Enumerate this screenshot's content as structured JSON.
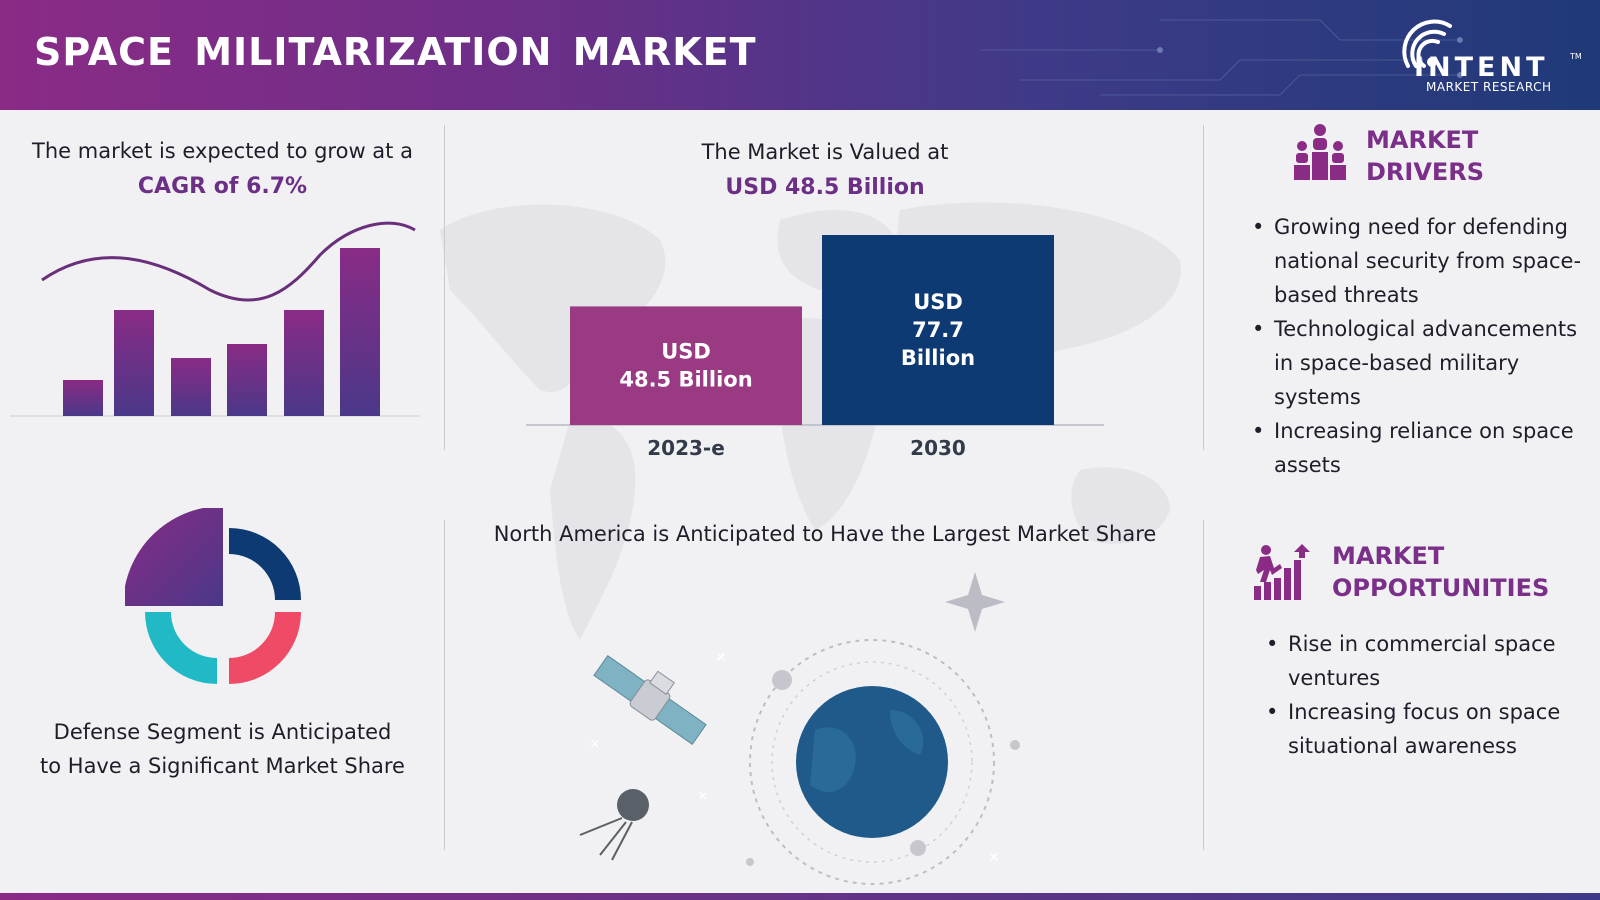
{
  "header": {
    "title": "SPACE  MILITARIZATION  MARKET",
    "logo_word": "INTENT",
    "logo_tm": "TM",
    "logo_sub": "MARKET RESEARCH"
  },
  "cagr": {
    "line1": "The market is expected to grow at a",
    "highlight": "CAGR of 6.7%"
  },
  "valuation": {
    "line1": "The Market is Valued at",
    "highlight": "USD 48.5 Billion"
  },
  "chart_data": {
    "type": "bar",
    "categories": [
      "2023-e",
      "2030"
    ],
    "values": [
      48.5,
      77.7
    ],
    "data_labels": [
      "USD\n48.5 Billion",
      "USD\n77.7\nBillion"
    ],
    "colors": [
      "#9a3a83",
      "#0d3a72"
    ],
    "title": "",
    "xlabel": "",
    "ylabel": "",
    "ylim": [
      0,
      80
    ]
  },
  "segment": {
    "text": "Defense Segment is Anticipated to Have a Significant Market Share"
  },
  "region": {
    "text": "North America is Anticipated to Have the Largest Market Share"
  },
  "drivers": {
    "title_line1": "MARKET",
    "title_line2": "DRIVERS",
    "items": [
      "Growing need for defending national security from space-based threats",
      "Technological advancements in space-based military systems",
      "Increasing reliance on space assets"
    ]
  },
  "opportunities": {
    "title_line1": "MARKET",
    "title_line2": "OPPORTUNITIES",
    "items": [
      "Rise in commercial space ventures",
      "Increasing focus on space situational awareness"
    ]
  },
  "colors": {
    "purple": "#8a2b86",
    "navy": "#0d3a72",
    "magenta": "#9a3a83",
    "teal": "#22b9c6",
    "coral": "#ef4a66"
  },
  "icons": {
    "drivers": "people-podium-icon",
    "opportunities": "climbing-chart-icon",
    "logo": "wifi-signal-icon"
  }
}
